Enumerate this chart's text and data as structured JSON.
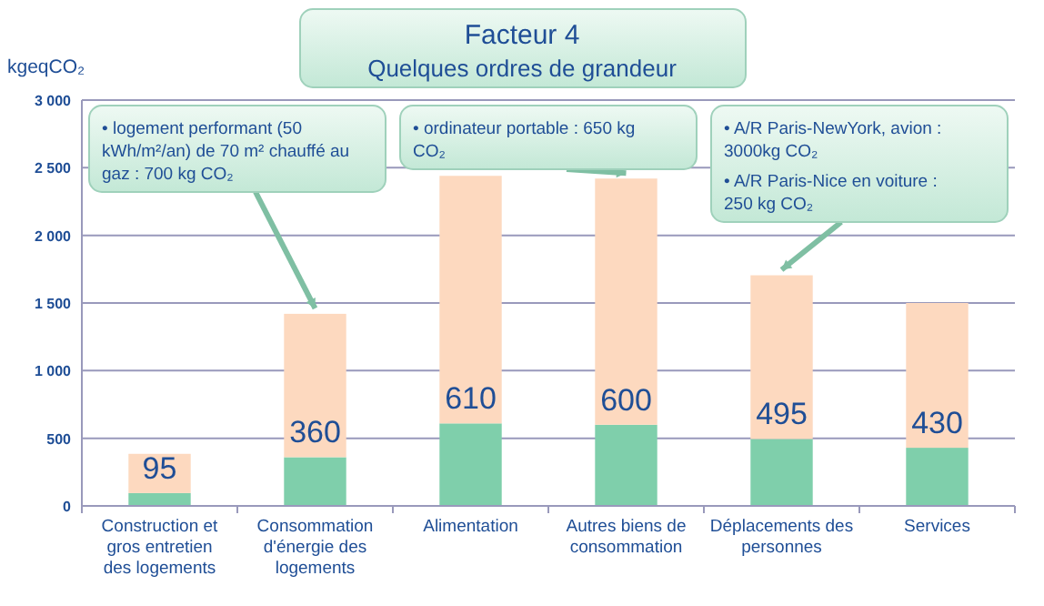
{
  "chart_data": {
    "type": "bar",
    "title": "Facteur 4",
    "subtitle": "Quelques ordres de grandeur",
    "ylabel": "kgeqCO₂",
    "categories": [
      "Construction et gros entretien des logements",
      "Consommation d'énergie des logements",
      "Alimentation",
      "Autres biens de consommation",
      "Déplacements des personnes",
      "Services"
    ],
    "stacked": true,
    "series": [
      {
        "color": "#7fcfab",
        "values": [
          95,
          360,
          610,
          600,
          495,
          430
        ],
        "value_labels": [
          "95",
          "360",
          "610",
          "600",
          "495",
          "430"
        ]
      },
      {
        "color": "#fdd9bf",
        "values": [
          290,
          1060,
          1830,
          1820,
          1210,
          1070
        ]
      }
    ],
    "ylim": [
      0,
      3000
    ],
    "yticks": [
      0,
      500,
      {
        "value": 1000,
        "label": "1 000"
      },
      {
        "value": 1500,
        "label": "1 500"
      },
      {
        "value": 2000,
        "label": "2 000"
      },
      {
        "value": 2500,
        "label": "2 500"
      },
      {
        "value": 3000,
        "label": "3 000"
      }
    ],
    "grid": "y",
    "annotations": [
      {
        "text": "• logement performant (50 kWh/m²/an) de 70 m² chauffé au gaz : 700 kg CO₂",
        "x": "Consommation d'énergie des logements",
        "y": 1420
      },
      {
        "text": "• ordinateur portable : 650 kg CO₂",
        "x": "Autres biens de consommation",
        "y": 2420
      },
      "• A/R Paris-NewYork, avion : 3000kg CO₂",
      {
        "text": "• A/R Paris-Nice en voiture : 250 kg CO₂",
        "x": "Déplacements des personnes",
        "y": 1705
      }
    ]
  }
}
